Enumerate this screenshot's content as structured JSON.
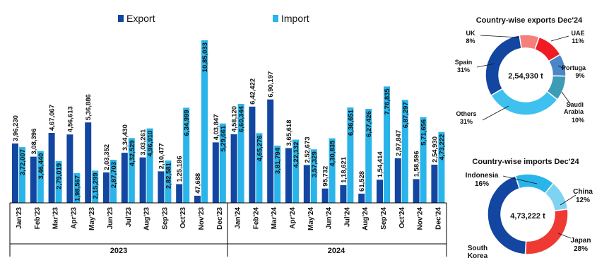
{
  "colors": {
    "export": "#1246a0",
    "import": "#29b4ea",
    "axis": "#000000"
  },
  "chart_data": [
    {
      "type": "bar",
      "title": "",
      "legend": {
        "placement": "top",
        "entries": [
          "Export",
          "Import"
        ]
      },
      "xlabel": "",
      "ylabel": "",
      "grid": false,
      "categories": [
        "Jan'23",
        "Feb'23",
        "Mar'23",
        "Apr'23",
        "May'23",
        "Jun'23",
        "Jul'23",
        "Aug'23",
        "Sep'23",
        "Oct'23",
        "Nov'23",
        "Dec'23",
        "Jan'24",
        "Feb'24",
        "Mar'24",
        "Apr'24",
        "May'24",
        "Jun'24",
        "Jul'24",
        "Aug'24",
        "Sep'24",
        "Oct'24",
        "Nov'24",
        "Dec'24"
      ],
      "year_groups": [
        {
          "label": "2023"
        },
        {
          "label": "2024"
        }
      ],
      "series": [
        {
          "name": "Export",
          "values": [
            396230,
            308396,
            467067,
            456613,
            536886,
            203352,
            334430,
            303261,
            210477,
            125186,
            47688,
            403847,
            458120,
            642422,
            690197,
            365618,
            252673,
            95732,
            118621,
            61528,
            154414,
            297847,
            158596,
            254930
          ],
          "labels": [
            "3,96,230",
            "3,08,396",
            "4,67,067",
            "4,56,613",
            "5,36,886",
            "2,03,352",
            "3,34,430",
            "3,03,261",
            "2,10,477",
            "1,25,186",
            "47,688",
            "4,03,847",
            "4,58,120",
            "6,42,422",
            "6,90,197",
            "3,65,618",
            "2,52,673",
            "95,732",
            "1,18,621",
            "61,528",
            "1,54,414",
            "2,97,847",
            "1,58,596",
            "2,54,930"
          ]
        },
        {
          "name": "Import",
          "values": [
            372007,
            346440,
            279019,
            198567,
            215299,
            287703,
            432529,
            496910,
            282581,
            634999,
            1085033,
            529661,
            660344,
            465276,
            381794,
            422132,
            357329,
            430835,
            636651,
            627426,
            776835,
            687297,
            571656,
            473222
          ],
          "labels": [
            "3,72,007",
            "3,46,440",
            "2,79,019",
            "1,98,567",
            "2,15,299",
            "2,87,703",
            "4,32,529",
            "4,96,910",
            "2,82,581",
            "6,34,999",
            "10,85,033",
            "5,29,661",
            "6,60,344",
            "4,65,276",
            "3,81,794",
            "4,22,132",
            "3,57,329",
            "4,30,835",
            "6,36,651",
            "6,27,426",
            "7,76,835",
            "6,87,297",
            "5,71,656",
            "4,73,222"
          ]
        }
      ]
    },
    {
      "type": "pie",
      "title": "Country-wise exports Dec'24",
      "center_label": "2,54,930 t",
      "categories": [
        "UK",
        "UAE",
        "Portuga",
        "Saudi Arabia",
        "Others",
        "Spain"
      ],
      "values": [
        8,
        11,
        9,
        10,
        31,
        31
      ],
      "value_labels": [
        "8%",
        "11%",
        "9%",
        "10%",
        "31%",
        "31%"
      ],
      "colors": [
        "#f47f7b",
        "#ee1c25",
        "#4a86c8",
        "#3d9bb5",
        "#3fc1ef",
        "#1246a0"
      ]
    },
    {
      "type": "pie",
      "title": "Country-wise imports Dec'24",
      "center_label": "4,73,222 t",
      "categories": [
        "Indonesia",
        "China",
        "Japan",
        "South Korea"
      ],
      "values": [
        16,
        12,
        28,
        44
      ],
      "value_labels": [
        "16%",
        "12%",
        "28%",
        ""
      ],
      "colors": [
        "#29b4ea",
        "#7fd3f2",
        "#ee3a33",
        "#1246a0"
      ],
      "visible_slice_colors": {
        "gap": "#2a8dd4"
      }
    }
  ]
}
